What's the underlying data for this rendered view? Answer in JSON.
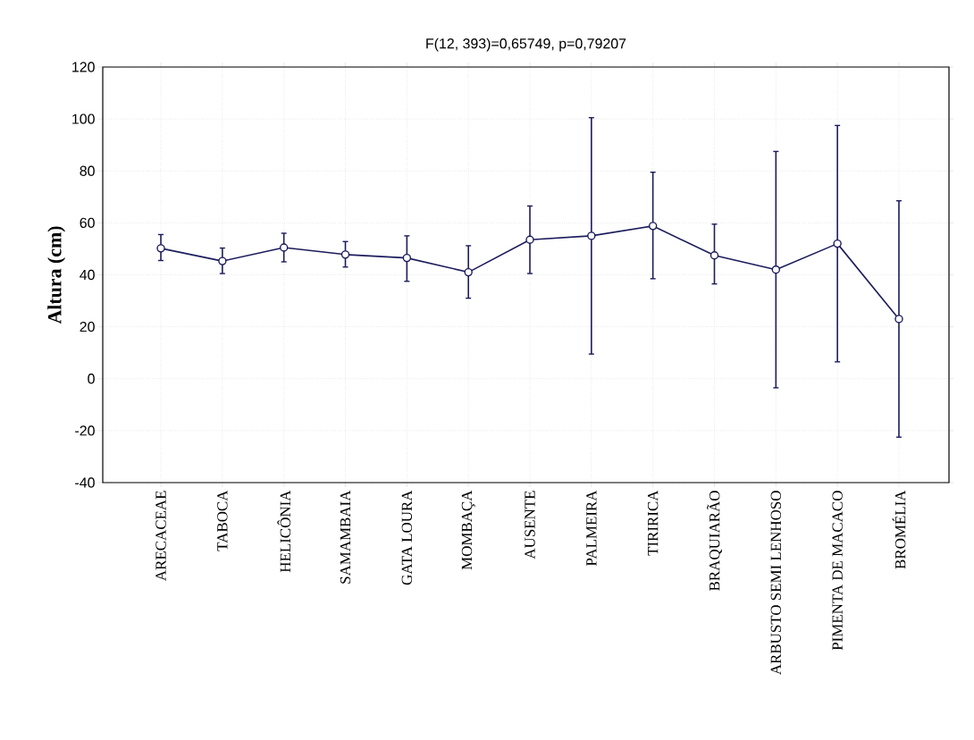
{
  "chart_data": {
    "type": "line",
    "title": "F(12, 393)=0,65749, p=0,79207",
    "ylabel": "Altura (cm)",
    "categories": [
      "ARECACEAE",
      "TABOCA",
      "HELICÔNIA",
      "SAMAMBAIA",
      "GATA LOURA",
      "MOMBAÇA",
      "AUSENTE",
      "PALMEIRA",
      "TIRIRICA",
      "BRAQUIARÃO",
      "ARBUSTO SEMI LENHOSO",
      "PIMENTA DE MACACO",
      "BROMÉLIA"
    ],
    "series": [
      {
        "color": "#1c1c5c",
        "values": [
          50.2,
          45.3,
          50.5,
          47.8,
          46.5,
          41,
          53.5,
          55,
          58.8,
          47.5,
          42,
          52,
          23
        ],
        "errors": [
          [
            45.5,
            55.5
          ],
          [
            40.5,
            50.3
          ],
          [
            45,
            56
          ],
          [
            43,
            52.8
          ],
          [
            37.5,
            55
          ],
          [
            31,
            51.2
          ],
          [
            40.5,
            66.5
          ],
          [
            9.5,
            100.5
          ],
          [
            38.5,
            79.5
          ],
          [
            36.5,
            59.5
          ],
          [
            -3.5,
            87.5
          ],
          [
            6.5,
            97.5
          ],
          [
            -22.5,
            68.5
          ]
        ]
      }
    ],
    "ylim": [
      -40,
      120
    ],
    "yticks": [
      -40,
      -20,
      0,
      20,
      40,
      60,
      80,
      100,
      120
    ],
    "grid": true,
    "marker": "circle",
    "line_style": "solid"
  }
}
